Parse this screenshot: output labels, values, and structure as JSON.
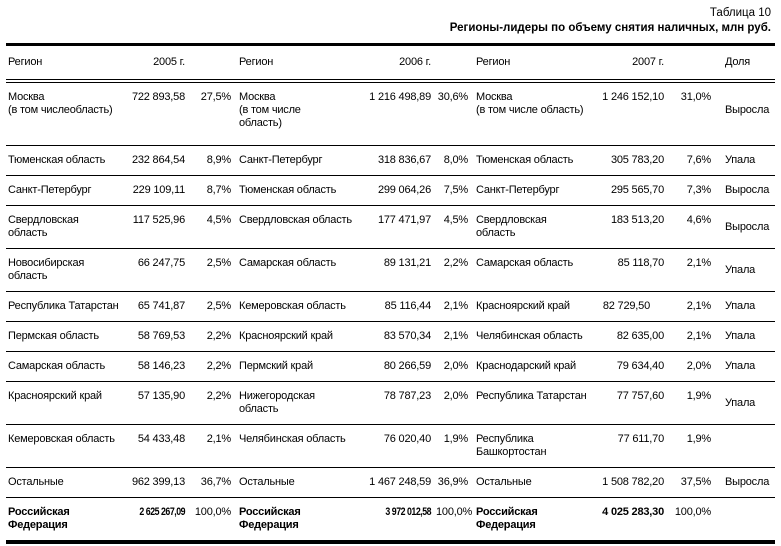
{
  "title": {
    "label": "Таблица 10",
    "heading": "Регионы-лидеры по объему снятия наличных, млн руб."
  },
  "table": {
    "header": {
      "region": "Регион",
      "y2005": "2005 г.",
      "y2006": "2006 г.",
      "y2007": "2007 г.",
      "share": "Доля"
    },
    "rows": [
      {
        "r2005": "Москва\n(в том числеобласть)",
        "v2005": "722 893,58",
        "p2005": "27,5%",
        "r2006": "Москва\n(в том числе\nобласть)",
        "v2006": "1 216 498,89",
        "p2006": "30,6%",
        "r2007": "Москва\n(в том числе область)",
        "v2007": "1 246 152,10",
        "p2007": "31,0%",
        "share": "Выросла"
      },
      {
        "r2005": "Тюменская область",
        "v2005": "232 864,54",
        "p2005": "8,9%",
        "r2006": "Санкт-Петербург",
        "v2006": "318 836,67",
        "p2006": "8,0%",
        "r2007": "Тюменская область",
        "v2007": "305 783,20",
        "p2007": "7,6%",
        "share": "Упала"
      },
      {
        "r2005": "Санкт-Петербург",
        "v2005": "229 109,11",
        "p2005": "8,7%",
        "r2006": "Тюменская область",
        "v2006": "299 064,26",
        "p2006": "7,5%",
        "r2007": "Санкт-Петербург",
        "v2007": "295 565,70",
        "p2007": "7,3%",
        "share": "Выросла"
      },
      {
        "r2005": "Свердловская\nобласть",
        "v2005": "117 525,96",
        "p2005": "4,5%",
        "r2006": "Свердловская область",
        "v2006": "177 471,97",
        "p2006": "4,5%",
        "r2007": "Свердловская\nобласть",
        "v2007": "183 513,20",
        "p2007": "4,6%",
        "share": "Выросла"
      },
      {
        "r2005": "Новосибирская\nобласть",
        "v2005": "66 247,75",
        "p2005": "2,5%",
        "r2006": "Самарская область",
        "v2006": "89 131,21",
        "p2006": "2,2%",
        "r2007": "Самарская область",
        "v2007": "85 118,70",
        "p2007": "2,1%",
        "share": "Упала"
      },
      {
        "r2005": "Республика Татарстан",
        "v2005": "65 741,87",
        "p2005": "2,5%",
        "r2006": "Кемеровская область",
        "v2006": "85 116,44",
        "p2006": "2,1%",
        "r2007": "Красноярский край",
        "v2007": "82 729,50",
        "p2007": "2,1%",
        "share": "Упала",
        "v2007_shift": true
      },
      {
        "r2005": "Пермская область",
        "v2005": "58 769,53",
        "p2005": "2,2%",
        "r2006": "Красноярский край",
        "v2006": "83 570,34",
        "p2006": "2,1%",
        "r2007": "Челябинская область",
        "v2007": "82 635,00",
        "p2007": "2,1%",
        "share": "Упала"
      },
      {
        "r2005": "Самарская область",
        "v2005": "58 146,23",
        "p2005": "2,2%",
        "r2006": "Пермский край",
        "v2006": "80 266,59",
        "p2006": "2,0%",
        "r2007": "Краснодарский край",
        "v2007": "79 634,40",
        "p2007": "2,0%",
        "share": "Упала"
      },
      {
        "r2005": "Красноярский край",
        "v2005": "57 135,90",
        "p2005": "2,2%",
        "r2006": "Нижегородская\nобласть",
        "v2006": "78 787,23",
        "p2006": "2,0%",
        "r2007": "Республика Татарстан",
        "v2007": "77 757,60",
        "p2007": "1,9%",
        "share": "Упала"
      },
      {
        "r2005": "Кемеровская область",
        "v2005": "54 433,48",
        "p2005": "2,1%",
        "r2006": "Челябинская область",
        "v2006": "76 020,40",
        "p2006": "1,9%",
        "r2007": "Республика\nБашкортостан",
        "v2007": "77 611,70",
        "p2007": "1,9%",
        "share": ""
      },
      {
        "r2005": "Остальные",
        "v2005": "962 399,13",
        "p2005": "36,7%",
        "r2006": "Остальные",
        "v2006": "1 467 248,59",
        "p2006": "36,9%",
        "r2007": "Остальные",
        "v2007": "1 508 782,20",
        "p2007": "37,5%",
        "share": "Выросла"
      },
      {
        "r2005": "Российская\nФедерация",
        "v2005": "2 625 267,09",
        "p2005": "100,0%",
        "r2006": "Российская\nФедерация",
        "v2006": "3 972 012,58",
        "p2006": "100,0%",
        "r2007": "Российская\nФедерация",
        "v2007": "4 025 283,30",
        "p2007": "100,0%",
        "share": "",
        "bold": true,
        "squish": [
          "v2005",
          "v2006"
        ]
      }
    ]
  }
}
